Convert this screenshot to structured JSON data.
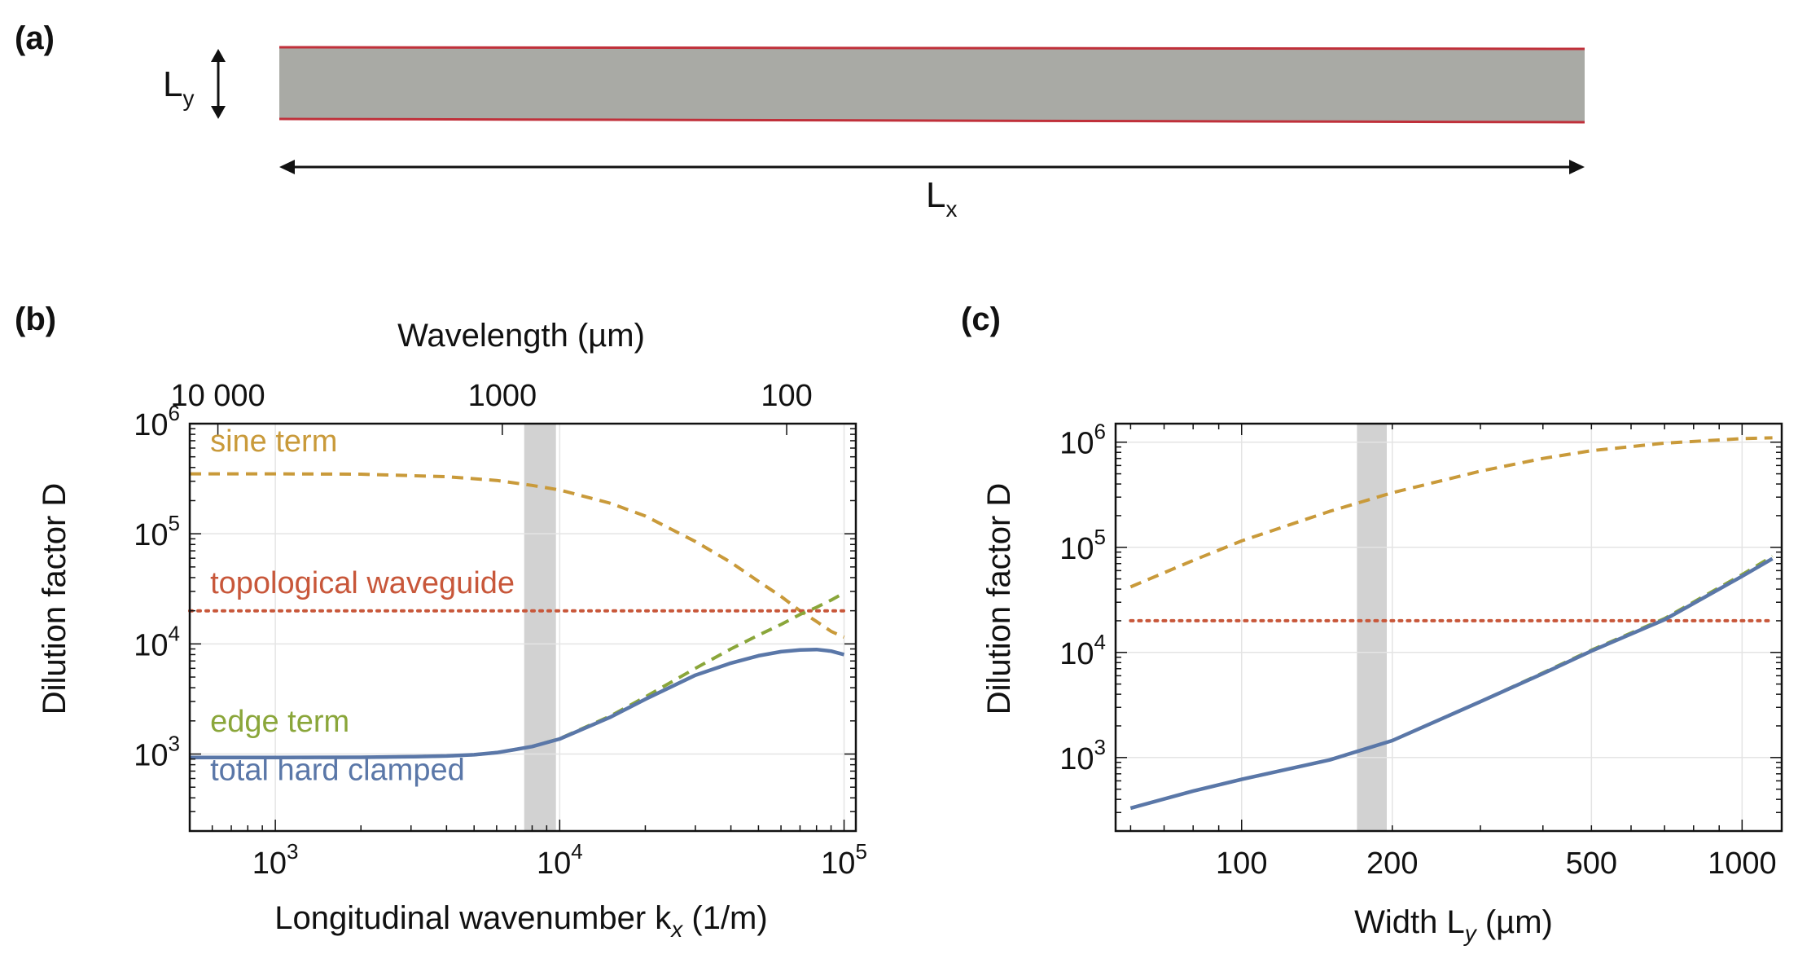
{
  "panel_labels": {
    "a": "(a)",
    "b": "(b)",
    "c": "(c)"
  },
  "schematic": {
    "ly_label": "L",
    "ly_sub": "y",
    "lx_label": "L",
    "lx_sub": "x",
    "strip_color": "#a9aaa5",
    "edge_color": "#c0303a"
  },
  "chart_data": [
    {
      "type": "line",
      "id": "b",
      "xscale": "log",
      "yscale": "log",
      "xlim": [
        500,
        110000
      ],
      "ylim": [
        200,
        1000000
      ],
      "xlabel": "Longitudinal wavenumber k",
      "xlabel_sub": "x",
      "xlabel_unit": " (1/m)",
      "ylabel": "Dilution factor D",
      "top_axis_label": "Wavelength (µm)",
      "top_ticks": [
        {
          "label": "10 000",
          "k": 628
        },
        {
          "label": "1000",
          "k": 6283
        },
        {
          "label": "100",
          "k": 62832
        }
      ],
      "xticks": [
        {
          "value": 1000,
          "base": "10",
          "exp": "3"
        },
        {
          "value": 10000,
          "base": "10",
          "exp": "4"
        },
        {
          "value": 100000,
          "base": "10",
          "exp": "5"
        }
      ],
      "yticks": [
        {
          "value": 1000,
          "base": "10",
          "exp": "3"
        },
        {
          "value": 10000,
          "base": "10",
          "exp": "4"
        },
        {
          "value": 100000,
          "base": "10",
          "exp": "5"
        },
        {
          "value": 1000000,
          "base": "10",
          "exp": "6"
        }
      ],
      "shaded_band": [
        7500,
        9700
      ],
      "series": [
        {
          "name": "sine term",
          "color": "#c99a3a",
          "dash": "dashed",
          "x": [
            500,
            1000,
            2000,
            4000,
            6000,
            8000,
            10000,
            15000,
            20000,
            30000,
            40000,
            50000,
            60000,
            70000,
            80000,
            90000,
            100000
          ],
          "y": [
            350000,
            350000,
            348000,
            330000,
            305000,
            275000,
            250000,
            190000,
            145000,
            85000,
            55000,
            37000,
            27000,
            20000,
            16000,
            13000,
            11500
          ]
        },
        {
          "name": "topological waveguide",
          "color": "#c8573a",
          "dash": "dotted",
          "x": [
            500,
            100000
          ],
          "y": [
            20000,
            20000
          ]
        },
        {
          "name": "edge term",
          "color": "#8aa63a",
          "dash": "dashed",
          "x": [
            500,
            1000,
            2000,
            3000,
            4000,
            5000,
            6000,
            7000,
            8000,
            10000,
            15000,
            20000,
            30000,
            40000,
            50000,
            60000,
            70000,
            80000,
            90000,
            100000
          ],
          "y": [
            930,
            930,
            935,
            945,
            960,
            985,
            1030,
            1100,
            1170,
            1380,
            2200,
            3300,
            6000,
            9000,
            12000,
            15000,
            18500,
            21500,
            25000,
            29000
          ]
        },
        {
          "name": "total hard clamped",
          "color": "#5a77a8",
          "dash": "solid",
          "x": [
            500,
            1000,
            2000,
            3000,
            4000,
            5000,
            6000,
            7000,
            8000,
            10000,
            15000,
            20000,
            30000,
            40000,
            50000,
            60000,
            70000,
            80000,
            90000,
            100000
          ],
          "y": [
            930,
            930,
            935,
            945,
            960,
            985,
            1030,
            1100,
            1170,
            1370,
            2150,
            3150,
            5200,
            6700,
            7800,
            8500,
            8800,
            8900,
            8600,
            8000
          ]
        }
      ],
      "annotations": [
        {
          "text": "sine term",
          "color": "#c99a3a",
          "k": 590,
          "d": 560000
        },
        {
          "text": "topological waveguide",
          "color": "#c8573a",
          "k": 590,
          "d": 29000
        },
        {
          "text": "edge term",
          "color": "#8aa63a",
          "k": 590,
          "d": 1600
        },
        {
          "text": "total hard clamped",
          "color": "#5a77a8",
          "k": 590,
          "d": 580
        }
      ]
    },
    {
      "type": "line",
      "id": "c",
      "xscale": "log",
      "yscale": "log",
      "xlim": [
        56,
        1200
      ],
      "ylim": [
        200,
        1500000
      ],
      "xlabel": "Width L",
      "xlabel_sub": "y",
      "xlabel_unit": " (µm)",
      "ylabel": "Dilution factor D",
      "xticks": [
        {
          "value": 100,
          "label": "100"
        },
        {
          "value": 200,
          "label": "200"
        },
        {
          "value": 500,
          "label": "500"
        },
        {
          "value": 1000,
          "label": "1000"
        }
      ],
      "yticks": [
        {
          "value": 1000,
          "base": "10",
          "exp": "3"
        },
        {
          "value": 10000,
          "base": "10",
          "exp": "4"
        },
        {
          "value": 100000,
          "base": "10",
          "exp": "5"
        },
        {
          "value": 1000000,
          "base": "10",
          "exp": "6"
        }
      ],
      "shaded_band": [
        170,
        195
      ],
      "series": [
        {
          "name": "sine term",
          "color": "#c99a3a",
          "dash": "dashed",
          "x": [
            60,
            80,
            100,
            150,
            200,
            300,
            400,
            500,
            700,
            1000,
            1150
          ],
          "y": [
            42000,
            75000,
            115000,
            220000,
            330000,
            530000,
            700000,
            830000,
            980000,
            1080000,
            1100000
          ]
        },
        {
          "name": "topological waveguide",
          "color": "#c8573a",
          "dash": "dotted",
          "x": [
            60,
            1150
          ],
          "y": [
            20000,
            20000
          ]
        },
        {
          "name": "edge term",
          "color": "#8aa63a",
          "dash": "dashed",
          "x": [
            60,
            80,
            100,
            150,
            200,
            300,
            400,
            500,
            700,
            1000,
            1150
          ],
          "y": [
            330,
            480,
            620,
            950,
            1450,
            3400,
            6400,
            10500,
            21000,
            55000,
            82000
          ]
        },
        {
          "name": "total hard clamped",
          "color": "#5a77a8",
          "dash": "solid",
          "x": [
            60,
            80,
            100,
            150,
            200,
            300,
            400,
            500,
            700,
            1000,
            1150
          ],
          "y": [
            330,
            480,
            620,
            950,
            1450,
            3400,
            6300,
            10300,
            20500,
            53000,
            78000
          ]
        }
      ]
    }
  ]
}
